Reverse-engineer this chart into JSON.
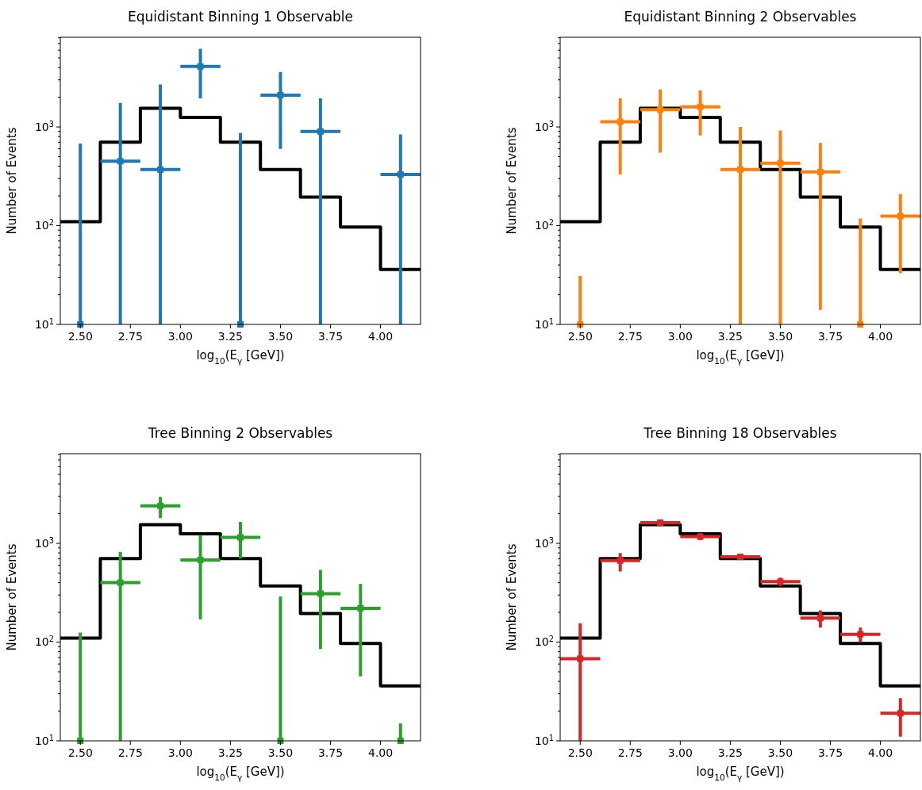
{
  "chart_data": [
    {
      "type": "scatter",
      "title": "Equidistant Binning 1 Observable",
      "xlabel": "log$_{10}$(E$_{γ}$ [GeV])",
      "ylabel": "Number of Events",
      "log": "y",
      "xlim": [
        2.4,
        4.2
      ],
      "ylim": [
        10,
        8100
      ],
      "xticks": [
        {
          "value": 2.5,
          "label": "2.50"
        },
        {
          "value": 2.75,
          "label": "2.75"
        },
        {
          "value": 3.0,
          "label": "3.00"
        },
        {
          "value": 3.25,
          "label": "3.25"
        },
        {
          "value": 3.5,
          "label": "3.50"
        },
        {
          "value": 3.75,
          "label": "3.75"
        },
        {
          "value": 4.0,
          "label": "4.00"
        }
      ],
      "yticks": [
        {
          "value": 10,
          "label": "10$^{1}$"
        },
        {
          "value": 100,
          "label": "10$^{2}$"
        },
        {
          "value": 1000,
          "label": "10$^{3}$"
        }
      ],
      "grid": false,
      "series": [
        {
          "type": "step",
          "color": "#000000",
          "x": [
            2.4,
            2.6,
            2.8,
            3.0,
            3.2,
            3.4,
            3.6,
            3.8,
            4.0,
            4.2
          ],
          "values": [
            110,
            700,
            1550,
            1250,
            700,
            370,
            195,
            97,
            36,
            36
          ]
        },
        {
          "color": "#1f77b4",
          "marker": "square",
          "x": [
            2.5,
            2.7,
            2.9,
            3.1,
            3.3,
            3.5,
            3.7,
            4.1
          ],
          "values": [
            10,
            450,
            370,
            4100,
            10,
            2100,
            900,
            330
          ],
          "errors": [
            [
              10,
              680
            ],
            [
              10,
              1750
            ],
            [
              10,
              2700
            ],
            [
              1950,
              6200
            ],
            [
              10,
              870
            ],
            [
              600,
              3600
            ],
            [
              10,
              1950
            ],
            [
              10,
              840
            ]
          ],
          "xerrors": [
            null,
            0.1,
            0.1,
            0.1,
            null,
            0.1,
            0.1,
            0.1
          ]
        }
      ]
    },
    {
      "type": "scatter",
      "title": "Equidistant Binning 2 Observables",
      "xlabel": "log$_{10}$(E$_{γ}$ [GeV])",
      "ylabel": "Number of Events",
      "log": "y",
      "xlim": [
        2.4,
        4.2
      ],
      "ylim": [
        10,
        8100
      ],
      "xticks": [
        {
          "value": 2.5,
          "label": "2.50"
        },
        {
          "value": 2.75,
          "label": "2.75"
        },
        {
          "value": 3.0,
          "label": "3.00"
        },
        {
          "value": 3.25,
          "label": "3.25"
        },
        {
          "value": 3.5,
          "label": "3.50"
        },
        {
          "value": 3.75,
          "label": "3.75"
        },
        {
          "value": 4.0,
          "label": "4.00"
        }
      ],
      "yticks": [
        {
          "value": 10,
          "label": "10$^{1}$"
        },
        {
          "value": 100,
          "label": "10$^{2}$"
        },
        {
          "value": 1000,
          "label": "10$^{3}$"
        }
      ],
      "grid": false,
      "series": [
        {
          "type": "step",
          "color": "#000000",
          "x": [
            2.4,
            2.6,
            2.8,
            3.0,
            3.2,
            3.4,
            3.6,
            3.8,
            4.0,
            4.2
          ],
          "values": [
            110,
            700,
            1550,
            1250,
            700,
            370,
            195,
            97,
            36,
            36
          ]
        },
        {
          "color": "#ff7f0e",
          "marker": "square",
          "x": [
            2.5,
            2.7,
            2.9,
            3.1,
            3.3,
            3.5,
            3.7,
            3.9,
            4.1
          ],
          "values": [
            10,
            1130,
            1500,
            1600,
            370,
            430,
            350,
            10,
            125
          ],
          "errors": [
            [
              10,
              31
            ],
            [
              330,
              1950
            ],
            [
              550,
              2400
            ],
            [
              820,
              2350
            ],
            [
              10,
              1000
            ],
            [
              10,
              920
            ],
            [
              14,
              690
            ],
            [
              10,
              118
            ],
            [
              33,
              210
            ]
          ],
          "xerrors": [
            null,
            0.1,
            0.1,
            0.1,
            0.1,
            0.1,
            0.1,
            null,
            0.1
          ]
        }
      ]
    },
    {
      "type": "scatter",
      "title": "Tree Binning 2 Observables",
      "xlabel": "log$_{10}$(E$_{γ}$ [GeV])",
      "ylabel": "Number of Events",
      "log": "y",
      "xlim": [
        2.4,
        4.2
      ],
      "ylim": [
        10,
        8100
      ],
      "xticks": [
        {
          "value": 2.5,
          "label": "2.50"
        },
        {
          "value": 2.75,
          "label": "2.75"
        },
        {
          "value": 3.0,
          "label": "3.00"
        },
        {
          "value": 3.25,
          "label": "3.25"
        },
        {
          "value": 3.5,
          "label": "3.50"
        },
        {
          "value": 3.75,
          "label": "3.75"
        },
        {
          "value": 4.0,
          "label": "4.00"
        }
      ],
      "yticks": [
        {
          "value": 10,
          "label": "10$^{1}$"
        },
        {
          "value": 100,
          "label": "10$^{2}$"
        },
        {
          "value": 1000,
          "label": "10$^{3}$"
        }
      ],
      "grid": false,
      "series": [
        {
          "type": "step",
          "color": "#000000",
          "x": [
            2.4,
            2.6,
            2.8,
            3.0,
            3.2,
            3.4,
            3.6,
            3.8,
            4.0,
            4.2
          ],
          "values": [
            110,
            700,
            1550,
            1250,
            700,
            370,
            195,
            97,
            36,
            36
          ]
        },
        {
          "color": "#2ca02c",
          "marker": "square",
          "x": [
            2.5,
            2.7,
            2.9,
            3.1,
            3.3,
            3.5,
            3.7,
            3.9,
            4.1
          ],
          "values": [
            10,
            400,
            2400,
            680,
            1150,
            10,
            310,
            220,
            10
          ],
          "errors": [
            [
              10,
              125
            ],
            [
              10,
              820
            ],
            [
              1800,
              2950
            ],
            [
              170,
              1200
            ],
            [
              700,
              1650
            ],
            [
              10,
              290
            ],
            [
              85,
              540
            ],
            [
              45,
              390
            ],
            [
              10,
              15
            ]
          ],
          "xerrors": [
            null,
            0.1,
            0.1,
            0.1,
            0.1,
            null,
            0.1,
            0.1,
            null
          ]
        }
      ]
    },
    {
      "type": "scatter",
      "title": "Tree Binning 18 Observables",
      "xlabel": "log$_{10}$(E$_{γ}$ [GeV])",
      "ylabel": "Number of Events",
      "log": "y",
      "xlim": [
        2.4,
        4.2
      ],
      "ylim": [
        10,
        8100
      ],
      "xticks": [
        {
          "value": 2.5,
          "label": "2.50"
        },
        {
          "value": 2.75,
          "label": "2.75"
        },
        {
          "value": 3.0,
          "label": "3.00"
        },
        {
          "value": 3.25,
          "label": "3.25"
        },
        {
          "value": 3.5,
          "label": "3.50"
        },
        {
          "value": 3.75,
          "label": "3.75"
        },
        {
          "value": 4.0,
          "label": "4.00"
        }
      ],
      "yticks": [
        {
          "value": 10,
          "label": "10$^{1}$"
        },
        {
          "value": 100,
          "label": "10$^{2}$"
        },
        {
          "value": 1000,
          "label": "10$^{3}$"
        }
      ],
      "grid": false,
      "series": [
        {
          "type": "step",
          "color": "#000000",
          "x": [
            2.4,
            2.6,
            2.8,
            3.0,
            3.2,
            3.4,
            3.6,
            3.8,
            4.0,
            4.2
          ],
          "values": [
            110,
            700,
            1550,
            1250,
            700,
            370,
            195,
            97,
            36,
            36
          ]
        },
        {
          "color": "#d62728",
          "marker": "square",
          "x": [
            2.5,
            2.7,
            2.9,
            3.1,
            3.3,
            3.5,
            3.7,
            3.9,
            4.1
          ],
          "values": [
            68,
            670,
            1620,
            1170,
            730,
            410,
            175,
            120,
            19
          ],
          "errors": [
            [
              10,
              155
            ],
            [
              520,
              800
            ],
            [
              1500,
              1750
            ],
            [
              1080,
              1270
            ],
            [
              680,
              780
            ],
            [
              370,
              450
            ],
            [
              140,
              210
            ],
            [
              100,
              140
            ],
            [
              11,
              27
            ]
          ],
          "xerrors": [
            0.1,
            0.1,
            0.1,
            0.1,
            0.1,
            0.1,
            0.1,
            0.1,
            0.1
          ]
        }
      ]
    }
  ]
}
